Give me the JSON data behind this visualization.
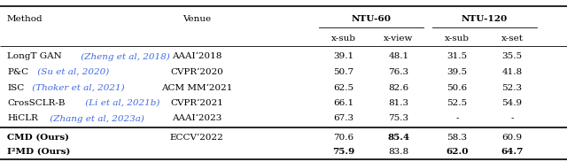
{
  "sub_headers": [
    "x-sub",
    "x-view",
    "x-sub",
    "x-set"
  ],
  "rows": [
    {
      "method": "LongT GAN",
      "method_cite": " (Zheng et al, 2018)",
      "venue": "AAAI‘2018",
      "vals": [
        "39.1",
        "48.1",
        "31.5",
        "35.5"
      ],
      "bold": [
        false,
        false,
        false,
        false
      ],
      "method_bold": false
    },
    {
      "method": "P&C",
      "method_cite": " (Su et al, 2020)",
      "venue": "CVPR‘2020",
      "vals": [
        "50.7",
        "76.3",
        "39.5",
        "41.8"
      ],
      "bold": [
        false,
        false,
        false,
        false
      ],
      "method_bold": false
    },
    {
      "method": "ISC",
      "method_cite": " (Thoker et al, 2021)",
      "venue": "ACM MM‘2021",
      "vals": [
        "62.5",
        "82.6",
        "50.6",
        "52.3"
      ],
      "bold": [
        false,
        false,
        false,
        false
      ],
      "method_bold": false
    },
    {
      "method": "CrosSCLR-B",
      "method_cite": " (Li et al, 2021b)",
      "venue": "CVPR‘2021",
      "vals": [
        "66.1",
        "81.3",
        "52.5",
        "54.9"
      ],
      "bold": [
        false,
        false,
        false,
        false
      ],
      "method_bold": false
    },
    {
      "method": "HiCLR",
      "method_cite": " (Zhang et al, 2023a)",
      "venue": "AAAI‘2023",
      "vals": [
        "67.3",
        "75.3",
        "-",
        "-"
      ],
      "bold": [
        false,
        false,
        false,
        false
      ],
      "method_bold": false
    },
    {
      "method": "CMD (Ours)",
      "method_cite": "",
      "venue": "ECCV‘2022",
      "vals": [
        "70.6",
        "85.4",
        "58.3",
        "60.9"
      ],
      "bold": [
        false,
        true,
        false,
        false
      ],
      "method_bold": true
    },
    {
      "method": "I²MD (Ours)",
      "method_cite": "",
      "venue": "",
      "vals": [
        "75.9",
        "83.8",
        "62.0",
        "64.7"
      ],
      "bold": [
        true,
        false,
        true,
        true
      ],
      "method_bold": true
    }
  ],
  "cite_color": "#4169E1",
  "bg_color": "#ffffff",
  "thick_lw": 1.2,
  "thin_lw": 0.6,
  "fs": 7.5,
  "fs_header": 7.5
}
